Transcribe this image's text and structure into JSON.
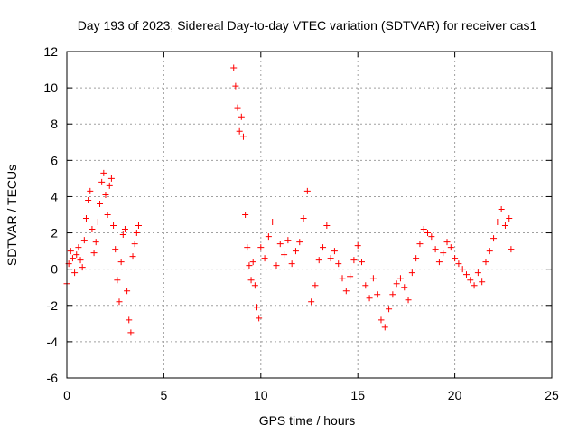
{
  "chart_data": {
    "type": "scatter",
    "title": "Day 193 of 2023, Sidereal Day-to-day VTEC variation (SDTVAR) for receiver cas1",
    "xlabel": "GPS time / hours",
    "ylabel": "SDTVAR / TECUs",
    "xlim": [
      0,
      25
    ],
    "ylim": [
      -6,
      12
    ],
    "xticks": [
      "0",
      "5",
      "10",
      "15",
      "20",
      "25"
    ],
    "yticks": [
      "-6",
      "-4",
      "-2",
      "0",
      "2",
      "4",
      "6",
      "8",
      "10",
      "12"
    ],
    "grid": true,
    "marker": "+",
    "series": [
      {
        "name": "SDTVAR",
        "color": "#ff0000",
        "x": [
          0.0,
          0.1,
          0.2,
          0.3,
          0.4,
          0.5,
          0.6,
          0.7,
          0.8,
          0.9,
          1.0,
          1.1,
          1.2,
          1.3,
          1.4,
          1.5,
          1.6,
          1.7,
          1.8,
          1.9,
          2.0,
          2.1,
          2.2,
          2.3,
          2.4,
          2.5,
          2.6,
          2.7,
          2.8,
          2.9,
          3.0,
          3.1,
          3.2,
          3.3,
          3.4,
          3.5,
          3.6,
          3.7,
          8.6,
          8.7,
          8.8,
          8.9,
          9.0,
          9.1,
          9.2,
          9.3,
          9.4,
          9.5,
          9.6,
          9.7,
          9.8,
          9.9,
          10.0,
          10.2,
          10.4,
          10.6,
          10.8,
          11.0,
          11.2,
          11.4,
          11.6,
          11.8,
          12.0,
          12.2,
          12.4,
          12.6,
          12.8,
          13.0,
          13.2,
          13.4,
          13.6,
          13.8,
          14.0,
          14.2,
          14.4,
          14.6,
          14.8,
          15.0,
          15.2,
          15.4,
          15.6,
          15.8,
          16.0,
          16.2,
          16.4,
          16.6,
          16.8,
          17.0,
          17.2,
          17.4,
          17.6,
          17.8,
          18.0,
          18.2,
          18.4,
          18.6,
          18.8,
          19.0,
          19.2,
          19.4,
          19.6,
          19.8,
          20.0,
          20.2,
          20.4,
          20.6,
          20.8,
          21.0,
          21.2,
          21.4,
          21.6,
          21.8,
          22.0,
          22.2,
          22.4,
          22.6,
          22.8,
          22.9
        ],
        "y": [
          -0.8,
          0.3,
          1.0,
          0.6,
          -0.2,
          0.8,
          1.2,
          0.5,
          0.1,
          1.6,
          2.8,
          3.8,
          4.3,
          2.2,
          0.9,
          1.5,
          2.6,
          3.6,
          4.8,
          5.3,
          4.1,
          3.0,
          4.6,
          5.0,
          2.4,
          1.1,
          -0.6,
          -1.8,
          0.4,
          1.9,
          2.2,
          -1.2,
          -2.8,
          -3.5,
          0.7,
          1.4,
          2.0,
          2.4,
          11.1,
          10.1,
          8.9,
          7.6,
          8.4,
          7.3,
          3.0,
          1.2,
          0.2,
          -0.6,
          0.4,
          -0.9,
          -2.1,
          -2.7,
          1.2,
          0.6,
          1.8,
          2.6,
          0.2,
          1.4,
          0.8,
          1.6,
          0.3,
          1.0,
          1.5,
          2.8,
          4.3,
          -1.8,
          -0.9,
          0.5,
          1.2,
          2.4,
          0.6,
          1.0,
          0.3,
          -0.5,
          -1.2,
          -0.4,
          0.5,
          1.3,
          0.4,
          -0.9,
          -1.6,
          -0.5,
          -1.4,
          -2.8,
          -3.2,
          -2.2,
          -1.4,
          -0.8,
          -0.5,
          -1.0,
          -1.7,
          -0.2,
          0.6,
          1.4,
          2.2,
          2.0,
          1.8,
          1.1,
          0.4,
          0.9,
          1.5,
          1.2,
          0.6,
          0.3,
          0.0,
          -0.3,
          -0.6,
          -0.9,
          -0.2,
          -0.7,
          0.4,
          1.0,
          1.7,
          2.6,
          3.3,
          2.4,
          2.8,
          1.1
        ]
      }
    ]
  }
}
